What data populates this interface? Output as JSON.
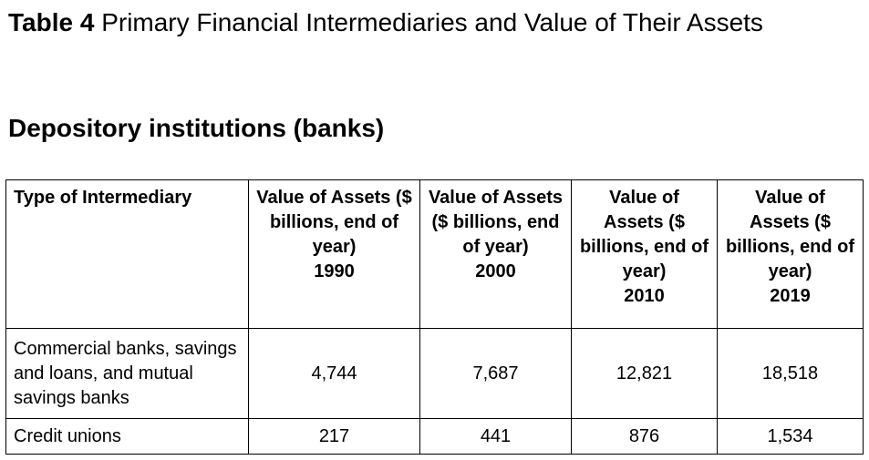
{
  "caption": {
    "label": "Table 4",
    "text": "Primary Financial Intermediaries and Value of Their Assets"
  },
  "section_heading": "Depository institutions (banks)",
  "table": {
    "headers": [
      {
        "text": "Type of Intermediary",
        "year": ""
      },
      {
        "text": "Value of Assets ($ billions, end of year)",
        "year": "1990"
      },
      {
        "text": "Value of Assets ($ billions, end of year)",
        "year": "2000"
      },
      {
        "text": "Value of Assets ($ billions, end of year)",
        "year": "2010"
      },
      {
        "text": "Value of Assets ($ billions, end of year)",
        "year": "2019"
      }
    ],
    "rows": [
      {
        "type": "Commercial banks, savings and loans, and mutual savings banks",
        "values": [
          "4,744",
          "7,687",
          "12,821",
          "18,518"
        ]
      },
      {
        "type": "Credit unions",
        "values": [
          "217",
          "441",
          "876",
          "1,534"
        ]
      }
    ]
  }
}
